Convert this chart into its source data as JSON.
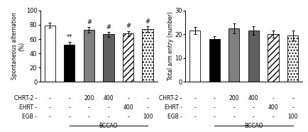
{
  "left_bars": {
    "values": [
      79,
      52,
      73,
      67,
      68,
      74
    ],
    "errors": [
      3.5,
      4.5,
      4.0,
      3.5,
      3.5,
      4.0
    ],
    "colors": [
      "white",
      "black",
      "#808080",
      "#606060",
      "white",
      "white"
    ],
    "hatches": [
      "",
      "",
      "",
      "",
      "////",
      "...."
    ],
    "edgecolors": [
      "black",
      "black",
      "black",
      "black",
      "black",
      "black"
    ],
    "annotations": [
      "",
      "**",
      "#",
      "#",
      "#",
      "#"
    ],
    "ylabel": "Spontaneous alternation\n(%)",
    "ylim": [
      0,
      100
    ],
    "yticks": [
      0,
      20,
      40,
      60,
      80,
      100
    ]
  },
  "right_bars": {
    "values": [
      21.5,
      18,
      22.5,
      21.5,
      20,
      19.5
    ],
    "errors": [
      1.5,
      1.2,
      2.0,
      1.8,
      1.5,
      2.2
    ],
    "colors": [
      "white",
      "black",
      "#808080",
      "#606060",
      "white",
      "white"
    ],
    "hatches": [
      "",
      "",
      "",
      "",
      "////",
      "...."
    ],
    "edgecolors": [
      "black",
      "black",
      "black",
      "black",
      "black",
      "black"
    ],
    "annotations": [
      "",
      "",
      "",
      "",
      "",
      ""
    ],
    "ylabel": "Total arm entry (number)",
    "ylim": [
      0,
      30
    ],
    "yticks": [
      0,
      10,
      20,
      30
    ]
  },
  "xticklabels_rows": [
    [
      "CHRT-2",
      "-",
      "-",
      "200",
      "400",
      "-",
      "-"
    ],
    [
      "EHRT",
      "-",
      "-",
      "-",
      "-",
      "400",
      "-"
    ],
    [
      "EGB",
      "-",
      "-",
      "-",
      "-",
      "-",
      "100"
    ]
  ],
  "bccao_label": "BCCAO",
  "bar_width": 0.55,
  "annotation_fontsize": 6,
  "label_fontsize": 5.5,
  "tick_fontsize": 6
}
